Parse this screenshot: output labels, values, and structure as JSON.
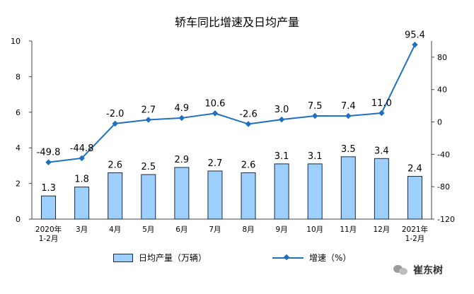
{
  "chart_data": {
    "type": "bar+line",
    "title": "轿车同比增速及日均产量",
    "categories": [
      [
        "2020年",
        "1-2月"
      ],
      [
        "3月"
      ],
      [
        "4月"
      ],
      [
        "5月"
      ],
      [
        "6月"
      ],
      [
        "7月"
      ],
      [
        "8月"
      ],
      [
        "9月"
      ],
      [
        "10月"
      ],
      [
        "11月"
      ],
      [
        "12月"
      ],
      [
        "2021年",
        "1-2月"
      ]
    ],
    "series": [
      {
        "name": "日均产量（万辆）",
        "type": "bar",
        "axis": "left",
        "values": [
          1.3,
          1.8,
          2.6,
          2.5,
          2.9,
          2.7,
          2.6,
          3.1,
          3.1,
          3.5,
          3.4,
          2.4
        ],
        "labels": [
          "1.3",
          "1.8",
          "2.6",
          "2.5",
          "2.9",
          "2.7",
          "2.6",
          "3.1",
          "3.1",
          "3.5",
          "3.4",
          "2.4"
        ]
      },
      {
        "name": "增速（%）",
        "type": "line",
        "axis": "right",
        "values": [
          -49.8,
          -44.8,
          -2.0,
          2.7,
          4.9,
          10.6,
          -2.6,
          3.0,
          7.5,
          7.4,
          11.0,
          95.4
        ],
        "labels": [
          "-49.8",
          "-44.8",
          "-2.0",
          "2.7",
          "4.9",
          "10.6",
          "-2.6",
          "3.0",
          "7.5",
          "7.4",
          "11.0",
          "95.4"
        ]
      }
    ],
    "y_left": {
      "range": [
        0,
        10
      ],
      "ticks": [
        "0",
        "2",
        "4",
        "6",
        "8",
        "10"
      ]
    },
    "y_right": {
      "range": [
        -120,
        100
      ],
      "ticks": [
        "-120",
        "-80",
        "-40",
        "0",
        "40",
        "80"
      ]
    },
    "grid": false,
    "legend_position": "bottom",
    "colors": {
      "bar_fill": "#9dcfff",
      "bar_stroke": "#1e2a3a",
      "line": "#1f6fc2",
      "axis": "#444444"
    }
  },
  "watermark": {
    "text": "崔东树"
  }
}
